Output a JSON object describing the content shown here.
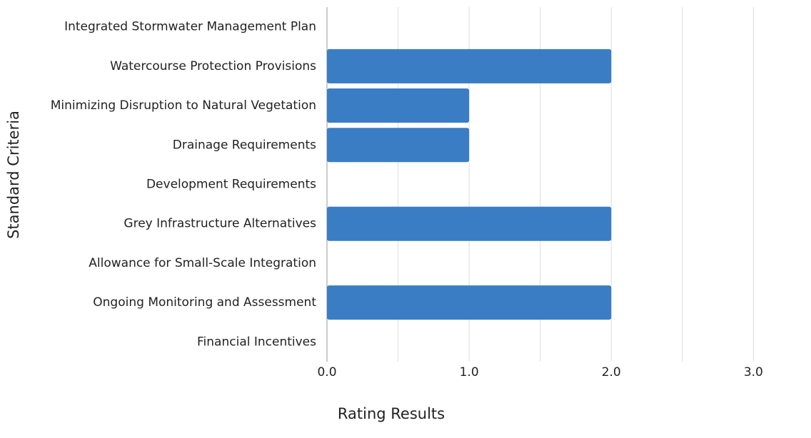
{
  "chart_data": {
    "type": "bar",
    "orientation": "horizontal",
    "x_label": "Rating Results",
    "y_label": "Standard Criteria",
    "categories": [
      "Integrated Stormwater Management Plan",
      "Watercourse Protection Provisions",
      "Minimizing Disruption to Natural Vegetation",
      "Drainage Requirements",
      "Development Requirements",
      "Grey Infrastructure Alternatives",
      "Allowance for Small-Scale Integration",
      "Ongoing Monitoring and Assessment",
      "Financial Incentives"
    ],
    "values": [
      0,
      2,
      1,
      1,
      0,
      2,
      0,
      2,
      0
    ],
    "color": "#3a7dc4",
    "xlim": [
      0,
      3.4
    ],
    "xticks": [
      {
        "value": 0,
        "label": "0.0"
      },
      {
        "value": 1,
        "label": "1.0"
      },
      {
        "value": 2,
        "label": "2.0"
      },
      {
        "value": 3,
        "label": "3.0"
      }
    ],
    "minor_xticks": [
      0.5,
      1.5,
      2.5
    ],
    "grid": true
  }
}
